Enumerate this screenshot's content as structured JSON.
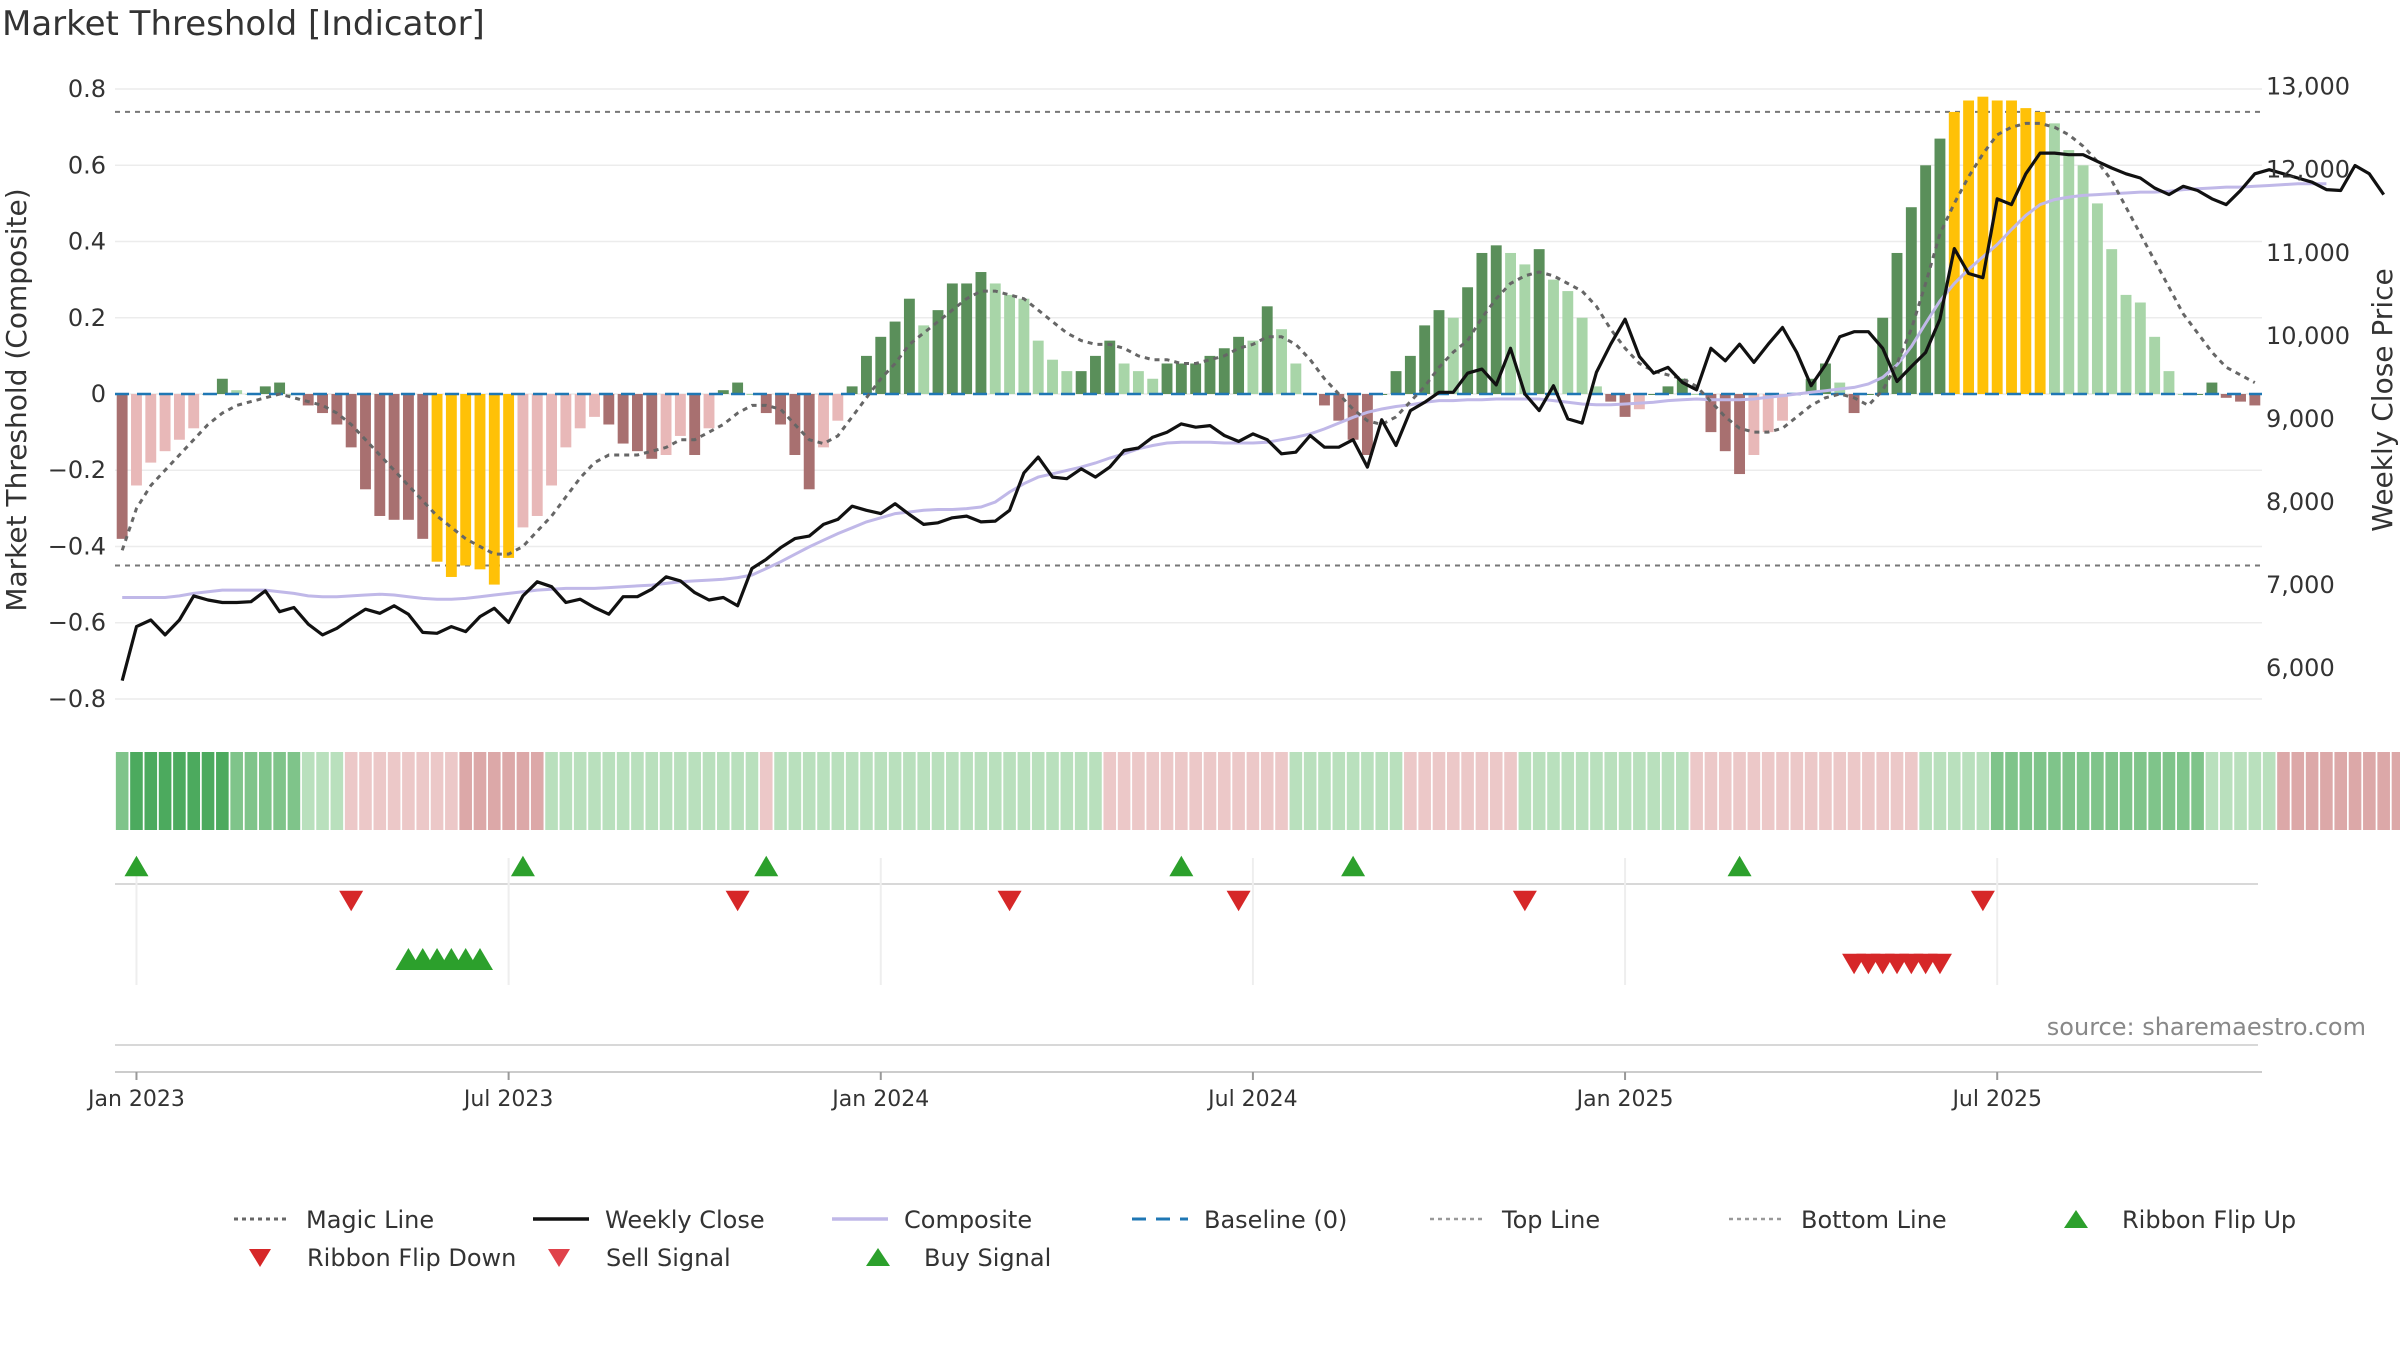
{
  "title": "Market Threshold [Indicator]",
  "source_text": "source: sharemaestro.com",
  "chart_data": {
    "type": "bar",
    "ylabel_left": "Market Threshold (Composite)",
    "ylabel_right": "Weekly Close Price",
    "ylim_left": [
      -0.85,
      0.85
    ],
    "ylim_right": [
      5400,
      13200
    ],
    "left_ticks": [
      {
        "v": 0.8,
        "label": "0.8"
      },
      {
        "v": 0.6,
        "label": "0.6"
      },
      {
        "v": 0.4,
        "label": "0.4"
      },
      {
        "v": 0.2,
        "label": "0.2"
      },
      {
        "v": 0,
        "label": "0"
      },
      {
        "v": -0.2,
        "label": "−0.2"
      },
      {
        "v": -0.4,
        "label": "−0.4"
      },
      {
        "v": -0.6,
        "label": "−0.6"
      },
      {
        "v": -0.8,
        "label": "−0.8"
      }
    ],
    "right_ticks": [
      {
        "v": 13000,
        "label": "13,000"
      },
      {
        "v": 12000,
        "label": "12,000"
      },
      {
        "v": 11000,
        "label": "11,000"
      },
      {
        "v": 10000,
        "label": "10,000"
      },
      {
        "v": 9000,
        "label": "9,000"
      },
      {
        "v": 8000,
        "label": "8,000"
      },
      {
        "v": 7000,
        "label": "7,000"
      },
      {
        "v": 6000,
        "label": "6,000"
      }
    ],
    "date_ticks": [
      {
        "week": 1,
        "label": "Jan 2023"
      },
      {
        "week": 27,
        "label": "Jul 2023"
      },
      {
        "week": 53,
        "label": "Jan 2024"
      },
      {
        "week": 79,
        "label": "Jul 2024"
      },
      {
        "week": 105,
        "label": "Jan 2025"
      },
      {
        "week": 131,
        "label": "Jul 2025"
      }
    ],
    "week_start": "2022-12-26",
    "top_line": 0.74,
    "bottom_line": -0.45,
    "composite_values": [
      -0.38,
      -0.24,
      -0.18,
      -0.15,
      -0.12,
      -0.09,
      0.0,
      0.04,
      0.01,
      0.0,
      0.02,
      0.03,
      0.0,
      -0.03,
      -0.05,
      -0.08,
      -0.14,
      -0.25,
      -0.32,
      -0.33,
      -0.33,
      -0.38,
      -0.44,
      -0.48,
      -0.45,
      -0.46,
      -0.5,
      -0.43,
      -0.35,
      -0.32,
      -0.24,
      -0.14,
      -0.09,
      -0.06,
      -0.08,
      -0.13,
      -0.15,
      -0.17,
      -0.16,
      -0.11,
      -0.16,
      -0.09,
      0.01,
      0.03,
      0.0,
      -0.05,
      -0.08,
      -0.16,
      -0.25,
      -0.14,
      -0.07,
      0.02,
      0.1,
      0.15,
      0.19,
      0.25,
      0.18,
      0.22,
      0.29,
      0.29,
      0.32,
      0.29,
      0.26,
      0.25,
      0.14,
      0.09,
      0.06,
      0.06,
      0.1,
      0.14,
      0.08,
      0.06,
      0.04,
      0.08,
      0.08,
      0.08,
      0.1,
      0.12,
      0.15,
      0.14,
      0.23,
      0.17,
      0.08,
      0.0,
      -0.03,
      -0.07,
      -0.12,
      -0.16,
      0.0,
      0.06,
      0.1,
      0.18,
      0.22,
      0.2,
      0.28,
      0.37,
      0.39,
      0.37,
      0.34,
      0.38,
      0.3,
      0.27,
      0.2,
      0.02,
      -0.02,
      -0.06,
      -0.04,
      0.0,
      0.02,
      0.04,
      0.0,
      -0.1,
      -0.15,
      -0.21,
      -0.16,
      -0.1,
      -0.07,
      0.0,
      0.04,
      0.08,
      0.03,
      -0.05,
      0.0,
      0.2,
      0.37,
      0.49,
      0.6,
      0.67,
      0.74,
      0.77,
      0.78,
      0.77,
      0.77,
      0.75,
      0.74,
      0.71,
      0.64,
      0.6,
      0.5,
      0.38,
      0.26,
      0.24,
      0.15,
      0.06,
      0.0,
      0.0,
      0.03,
      -0.01,
      -0.02,
      -0.03
    ],
    "composite_line": [
      -0.41,
      -0.3,
      -0.24,
      -0.2,
      -0.16,
      -0.12,
      -0.08,
      -0.05,
      -0.03,
      -0.02,
      -0.01,
      -0.0,
      -0.01,
      -0.02,
      -0.03,
      -0.05,
      -0.08,
      -0.12,
      -0.16,
      -0.2,
      -0.24,
      -0.28,
      -0.32,
      -0.35,
      -0.38,
      -0.4,
      -0.42,
      -0.42,
      -0.4,
      -0.36,
      -0.32,
      -0.27,
      -0.22,
      -0.18,
      -0.16,
      -0.16,
      -0.16,
      -0.15,
      -0.14,
      -0.12,
      -0.12,
      -0.1,
      -0.08,
      -0.05,
      -0.03,
      -0.03,
      -0.04,
      -0.08,
      -0.12,
      -0.13,
      -0.11,
      -0.06,
      -0.01,
      0.04,
      0.08,
      0.13,
      0.16,
      0.19,
      0.22,
      0.25,
      0.27,
      0.27,
      0.26,
      0.25,
      0.22,
      0.19,
      0.16,
      0.14,
      0.13,
      0.13,
      0.12,
      0.1,
      0.09,
      0.09,
      0.08,
      0.08,
      0.09,
      0.1,
      0.12,
      0.13,
      0.15,
      0.15,
      0.13,
      0.09,
      0.04,
      0.0,
      -0.04,
      -0.07,
      -0.08,
      -0.06,
      -0.02,
      0.02,
      0.07,
      0.11,
      0.14,
      0.2,
      0.25,
      0.29,
      0.31,
      0.32,
      0.31,
      0.29,
      0.27,
      0.23,
      0.17,
      0.12,
      0.08,
      0.06,
      0.05,
      0.04,
      0.02,
      -0.02,
      -0.06,
      -0.09,
      -0.1,
      -0.1,
      -0.09,
      -0.06,
      -0.03,
      -0.01,
      -0.0,
      -0.01,
      -0.03,
      0.01,
      0.08,
      0.17,
      0.29,
      0.42,
      0.5,
      0.57,
      0.63,
      0.68,
      0.7,
      0.71,
      0.71,
      0.7,
      0.68,
      0.65,
      0.61,
      0.56,
      0.49,
      0.42,
      0.35,
      0.28,
      0.21,
      0.16,
      0.11,
      0.07,
      0.05,
      0.03
    ],
    "close_values": [
      5850,
      6500,
      6580,
      6400,
      6580,
      6870,
      6820,
      6790,
      6790,
      6800,
      6930,
      6680,
      6730,
      6530,
      6400,
      6480,
      6600,
      6710,
      6660,
      6750,
      6650,
      6430,
      6420,
      6500,
      6440,
      6620,
      6720,
      6550,
      6870,
      7040,
      6980,
      6790,
      6830,
      6730,
      6650,
      6860,
      6860,
      6950,
      7100,
      7050,
      6910,
      6820,
      6850,
      6750,
      7200,
      7310,
      7450,
      7560,
      7590,
      7730,
      7790,
      7950,
      7900,
      7860,
      7980,
      7850,
      7730,
      7750,
      7810,
      7830,
      7760,
      7770,
      7900,
      8350,
      8540,
      8300,
      8280,
      8400,
      8300,
      8420,
      8620,
      8650,
      8780,
      8840,
      8940,
      8900,
      8920,
      8800,
      8730,
      8820,
      8750,
      8580,
      8600,
      8800,
      8660,
      8660,
      8750,
      8420,
      8990,
      8680,
      9100,
      9200,
      9320,
      9320,
      9550,
      9600,
      9410,
      9850,
      9300,
      9100,
      9400,
      9000,
      8950,
      9560,
      9900,
      10200,
      9750,
      9550,
      9620,
      9440,
      9350,
      9850,
      9700,
      9900,
      9680,
      9900,
      10100,
      9800,
      9400,
      9650,
      9990,
      10050,
      10050,
      9850,
      9450,
      9630,
      9800,
      10200,
      11050,
      10750,
      10700,
      11650,
      11580,
      11950,
      12200,
      12200,
      12180,
      12180,
      12100,
      12020,
      11950,
      11900,
      11780,
      11700,
      11800,
      11750,
      11650,
      11580,
      11750,
      11950,
      12000,
      11950,
      11900,
      11850,
      11760,
      11750,
      12050,
      11950,
      11700
    ],
    "composite_avg": [
      6850,
      6850,
      6850,
      6850,
      6870,
      6900,
      6920,
      6940,
      6940,
      6940,
      6940,
      6920,
      6900,
      6870,
      6860,
      6860,
      6870,
      6880,
      6890,
      6880,
      6860,
      6840,
      6830,
      6830,
      6840,
      6860,
      6880,
      6900,
      6920,
      6940,
      6950,
      6960,
      6960,
      6960,
      6970,
      6980,
      6990,
      7000,
      7020,
      7040,
      7050,
      7060,
      7070,
      7090,
      7120,
      7200,
      7280,
      7370,
      7460,
      7540,
      7620,
      7690,
      7760,
      7810,
      7860,
      7880,
      7900,
      7910,
      7910,
      7920,
      7940,
      8000,
      8120,
      8220,
      8300,
      8340,
      8380,
      8420,
      8470,
      8530,
      8580,
      8640,
      8680,
      8710,
      8720,
      8720,
      8720,
      8710,
      8710,
      8710,
      8720,
      8750,
      8780,
      8820,
      8880,
      8950,
      9020,
      9080,
      9120,
      9150,
      9170,
      9200,
      9220,
      9220,
      9230,
      9230,
      9240,
      9240,
      9240,
      9240,
      9220,
      9200,
      9180,
      9170,
      9170,
      9180,
      9190,
      9200,
      9220,
      9230,
      9240,
      9230,
      9230,
      9230,
      9240,
      9260,
      9280,
      9300,
      9320,
      9340,
      9360,
      9380,
      9420,
      9500,
      9650,
      9870,
      10150,
      10420,
      10630,
      10800,
      10950,
      11100,
      11280,
      11450,
      11580,
      11640,
      11670,
      11690,
      11700,
      11710,
      11720,
      11730,
      11730,
      11740,
      11760,
      11770,
      11780,
      11790,
      11790,
      11800,
      11810,
      11820,
      11830,
      11830,
      11830
    ],
    "strip_classes": [
      2,
      3,
      3,
      3,
      3,
      3,
      3,
      3,
      2,
      2,
      2,
      2,
      2,
      1,
      1,
      1,
      -1,
      -1,
      -1,
      -1,
      -1,
      -1,
      -1,
      -1,
      -2,
      -2,
      -2,
      -2,
      -2,
      -2,
      1,
      1,
      1,
      1,
      1,
      1,
      1,
      1,
      1,
      1,
      1,
      1,
      1,
      1,
      1,
      -1,
      1,
      1,
      1,
      1,
      1,
      1,
      1,
      1,
      1,
      1,
      1,
      1,
      1,
      1,
      1,
      1,
      1,
      1,
      1,
      1,
      1,
      1,
      1,
      -1,
      -1,
      -1,
      -1,
      -1,
      -1,
      -1,
      -1,
      -1,
      -1,
      -1,
      -1,
      -1,
      1,
      1,
      1,
      1,
      1,
      1,
      1,
      1,
      -1,
      -1,
      -1,
      -1,
      -1,
      -1,
      -1,
      -1,
      1,
      1,
      1,
      1,
      1,
      1,
      1,
      1,
      1,
      1,
      1,
      1,
      -1,
      -1,
      -1,
      -1,
      -1,
      -1,
      -1,
      -1,
      -1,
      -1,
      -1,
      -1,
      -1,
      -1,
      -1,
      -1,
      1,
      1,
      1,
      1,
      1,
      2,
      2,
      2,
      2,
      2,
      2,
      2,
      2,
      2,
      2,
      2,
      2,
      2,
      2,
      2,
      1,
      1,
      1,
      1,
      1,
      -2,
      -2,
      -2,
      -2,
      -2,
      -2,
      -2,
      -2,
      -2,
      -2,
      -2
    ],
    "buy_signal_weeks": [
      1,
      28,
      45,
      74,
      86,
      113
    ],
    "sell_signal_weeks": [
      16,
      43,
      62,
      78,
      98,
      130
    ],
    "ribbon_flip_up_weeks": [
      20,
      21,
      22,
      23,
      24,
      25
    ],
    "ribbon_flip_down_weeks": [
      121,
      122,
      123,
      124,
      125,
      126,
      127
    ],
    "colors": {
      "pos_light": "#a8d5a8",
      "pos_dark": "#5a8f5a",
      "neg_light": "#e8b8b8",
      "neg_dark": "#a87070",
      "extreme": "#ffc107",
      "close_line": "#111111",
      "composite_avg_line": "#c0b8e8",
      "magic_line": "#666666",
      "baseline": "#1f77b4",
      "buy": "#2ca02c",
      "sell": "#d62728",
      "strip_pos_1": "#b9e0bd",
      "strip_pos_2": "#7fc48a",
      "strip_pos_3": "#4caa5e",
      "strip_neg_1": "#ecc8c8",
      "strip_neg_2": "#dca8a8"
    },
    "legend": [
      {
        "label": "Magic Line",
        "key": "dotted-gray"
      },
      {
        "label": "Weekly Close",
        "key": "black-line"
      },
      {
        "label": "Composite",
        "key": "lavender-line"
      },
      {
        "label": "Baseline (0)",
        "key": "dashed-blue"
      },
      {
        "label": "Top Line",
        "key": "dotted-light"
      },
      {
        "label": "Bottom Line",
        "key": "dotted-light"
      },
      {
        "label": "Ribbon Flip Up",
        "key": "up-green"
      },
      {
        "label": "Ribbon Flip Down",
        "key": "down-red"
      },
      {
        "label": "Sell Signal",
        "key": "down-red-light"
      },
      {
        "label": "Buy Signal",
        "key": "up-green"
      }
    ]
  }
}
